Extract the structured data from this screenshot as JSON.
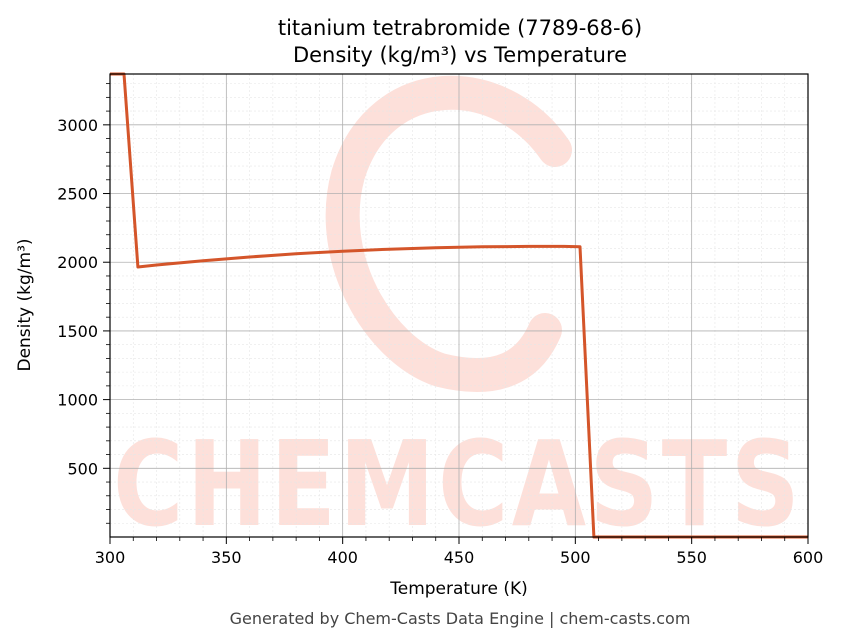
{
  "chart_data": {
    "type": "line",
    "title": "titanium tetrabromide (7789-68-6)",
    "subtitle": "Density (kg/m³) vs Temperature",
    "xlabel": "Temperature (K)",
    "ylabel": "Density (kg/m³)",
    "xlim": [
      300,
      600
    ],
    "ylim": [
      0,
      3370
    ],
    "x_ticks": [
      300,
      350,
      400,
      450,
      500,
      550,
      600
    ],
    "y_ticks": [
      500,
      1000,
      1500,
      2000,
      2500,
      3000
    ],
    "grid": true,
    "line_color": "#d4552a",
    "series": [
      {
        "x": [
          300,
          306,
          312,
          320,
          340,
          360,
          380,
          400,
          420,
          440,
          460,
          480,
          495,
          502,
          508,
          520,
          560,
          600
        ],
        "values": [
          3370,
          3370,
          1965,
          1980,
          2010,
          2038,
          2062,
          2080,
          2095,
          2106,
          2112,
          2115,
          2115,
          2113,
          0,
          0,
          0,
          0
        ]
      }
    ]
  },
  "watermark": {
    "text": "CHEMCASTS",
    "color": "#fde0da"
  },
  "footer": "Generated by Chem-Casts Data Engine | chem-casts.com"
}
